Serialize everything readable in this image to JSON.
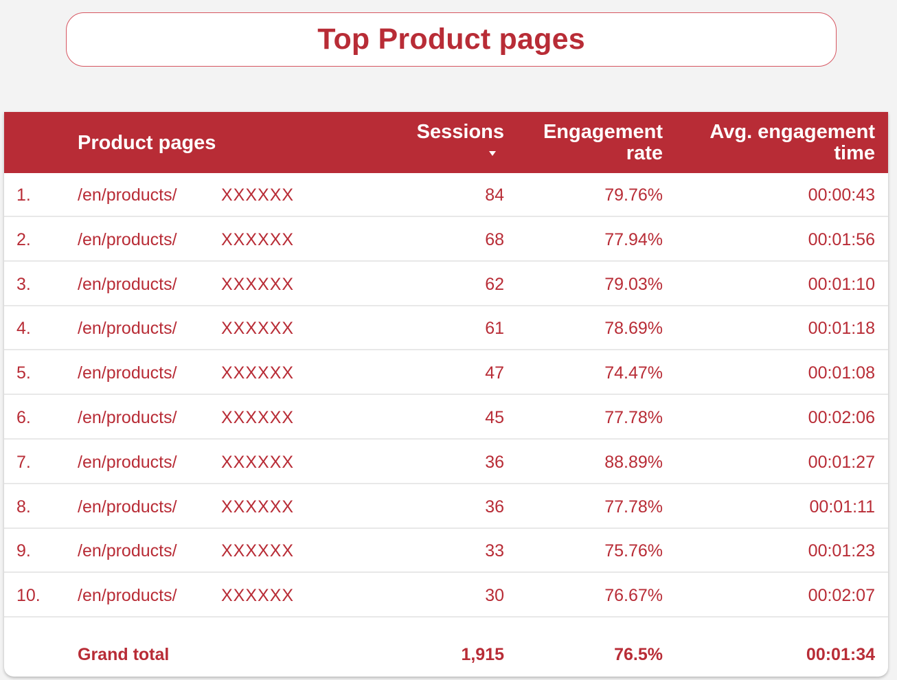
{
  "title": "Top Product pages",
  "table": {
    "headers": {
      "product_pages": "Product pages",
      "sessions": "Sessions",
      "engagement_rate": "Engagement rate",
      "avg_engagement_time": "Avg. engagement time"
    },
    "rows": [
      {
        "rank": "1.",
        "path": "/en/products/",
        "id": "XXXXXX",
        "sessions": "84",
        "rate": "79.76%",
        "time": "00:00:43"
      },
      {
        "rank": "2.",
        "path": "/en/products/",
        "id": "XXXXXX",
        "sessions": "68",
        "rate": "77.94%",
        "time": "00:01:56"
      },
      {
        "rank": "3.",
        "path": "/en/products/",
        "id": "XXXXXX",
        "sessions": "62",
        "rate": "79.03%",
        "time": "00:01:10"
      },
      {
        "rank": "4.",
        "path": "/en/products/",
        "id": "XXXXXX",
        "sessions": "61",
        "rate": "78.69%",
        "time": "00:01:18"
      },
      {
        "rank": "5.",
        "path": "/en/products/",
        "id": "XXXXXX",
        "sessions": "47",
        "rate": "74.47%",
        "time": "00:01:08"
      },
      {
        "rank": "6.",
        "path": "/en/products/",
        "id": "XXXXXX",
        "sessions": "45",
        "rate": "77.78%",
        "time": "00:02:06"
      },
      {
        "rank": "7.",
        "path": "/en/products/",
        "id": "XXXXXX",
        "sessions": "36",
        "rate": "88.89%",
        "time": "00:01:27"
      },
      {
        "rank": "8.",
        "path": "/en/products/",
        "id": "XXXXXX",
        "sessions": "36",
        "rate": "77.78%",
        "time": "00:01:11"
      },
      {
        "rank": "9.",
        "path": "/en/products/",
        "id": "XXXXXX",
        "sessions": "33",
        "rate": "75.76%",
        "time": "00:01:23"
      },
      {
        "rank": "10.",
        "path": "/en/products/",
        "id": "XXXXXX",
        "sessions": "30",
        "rate": "76.67%",
        "time": "00:02:07"
      }
    ],
    "total": {
      "label": "Grand total",
      "sessions": "1,915",
      "rate": "76.5%",
      "time": "00:01:34"
    }
  },
  "colors": {
    "accent": "#b82c36",
    "header_text": "#ffffff",
    "background": "#f3f3f3"
  },
  "icons": {
    "sort": "sort-descending-icon"
  }
}
